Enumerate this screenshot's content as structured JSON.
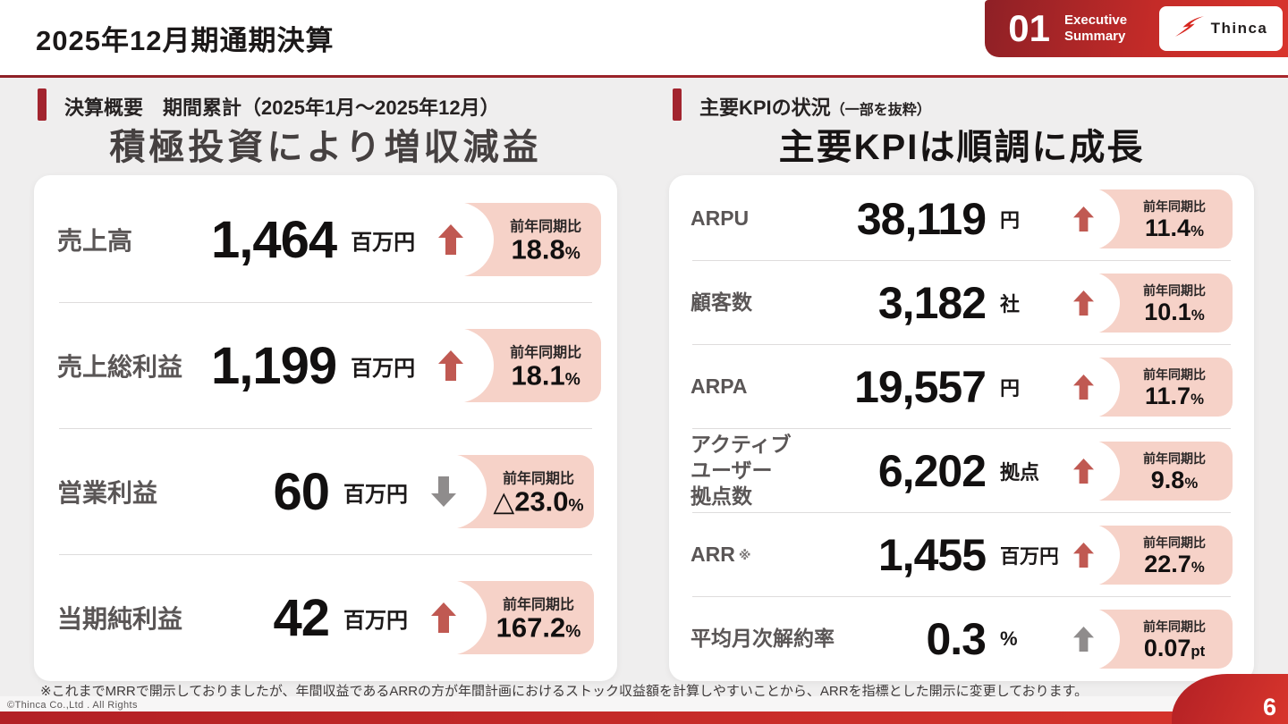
{
  "header": {
    "title": "2025年12月期通期決算",
    "section_number": "01",
    "section_label": "Executive Summary",
    "logo_text": "Thinca"
  },
  "left_panel": {
    "eyebrow": "決算概要　期間累計（2025年1月～2025年12月）",
    "headline": "積極投資により増収減益",
    "yoy_label": "前年同期比",
    "rows": [
      {
        "label": "売上高",
        "value": "1,464",
        "unit": "百万円",
        "direction": "up",
        "arrow_color": "red",
        "badge_label": "前年同期比",
        "badge_value": "18.8",
        "badge_suffix": "%"
      },
      {
        "label": "売上総利益",
        "value": "1,199",
        "unit": "百万円",
        "direction": "up",
        "arrow_color": "red",
        "badge_label": "前年同期比",
        "badge_value": "18.1",
        "badge_suffix": "%"
      },
      {
        "label": "営業利益",
        "value": "60",
        "unit": "百万円",
        "direction": "down",
        "arrow_color": "gray",
        "badge_label": "前年同期比",
        "badge_value": "△23.0",
        "badge_suffix": "%"
      },
      {
        "label": "当期純利益",
        "value": "42",
        "unit": "百万円",
        "direction": "up",
        "arrow_color": "red",
        "badge_label": "前年同期比",
        "badge_value": "167.2",
        "badge_suffix": "%"
      }
    ]
  },
  "right_panel": {
    "eyebrow": "主要KPIの状況",
    "eyebrow_note": "（一部を抜粋）",
    "headline": "主要KPIは順調に成長",
    "rows": [
      {
        "label": "ARPU",
        "value": "38,119",
        "unit": "円",
        "direction": "up",
        "arrow_color": "red",
        "badge_label": "前年同期比",
        "badge_value": "11.4",
        "badge_suffix": "%"
      },
      {
        "label": "顧客数",
        "value": "3,182",
        "unit": "社",
        "direction": "up",
        "arrow_color": "red",
        "badge_label": "前年同期比",
        "badge_value": "10.1",
        "badge_suffix": "%"
      },
      {
        "label": "ARPA",
        "value": "19,557",
        "unit": "円",
        "direction": "up",
        "arrow_color": "red",
        "badge_label": "前年同期比",
        "badge_value": "11.7",
        "badge_suffix": "%"
      },
      {
        "label": "アクティブ\nユーザー\n拠点数",
        "value": "6,202",
        "unit": "拠点",
        "direction": "up",
        "arrow_color": "red",
        "badge_label": "前年同期比",
        "badge_value": "9.8",
        "badge_suffix": "%"
      },
      {
        "label": "ARR",
        "label_note": "※",
        "value": "1,455",
        "unit": "百万円",
        "direction": "up",
        "arrow_color": "red",
        "badge_label": "前年同期比",
        "badge_value": "22.7",
        "badge_suffix": "%"
      },
      {
        "label": "平均月次解約率",
        "value": "0.3",
        "unit": "%",
        "direction": "up",
        "arrow_color": "gray",
        "badge_label": "前年同期比",
        "badge_value": "0.07",
        "badge_suffix": "pt"
      }
    ]
  },
  "footnote": "※これまでMRRで開示しておりましたが、年間収益であるARRの方が年間計画におけるストック収益額を計算しやすいことから、ARRを指標とした開示に変更しております。",
  "footer": {
    "copyright": "©Thinca Co.,Ltd . All Rights",
    "page_number": "6"
  },
  "colors": {
    "accent_dark_red": "#a2242e",
    "bright_red": "#d8352c",
    "badge_pink": "#f6d2c8",
    "arrow_red": "#c05952",
    "arrow_gray": "#8f8c8c",
    "body_gray": "#efeeee"
  }
}
